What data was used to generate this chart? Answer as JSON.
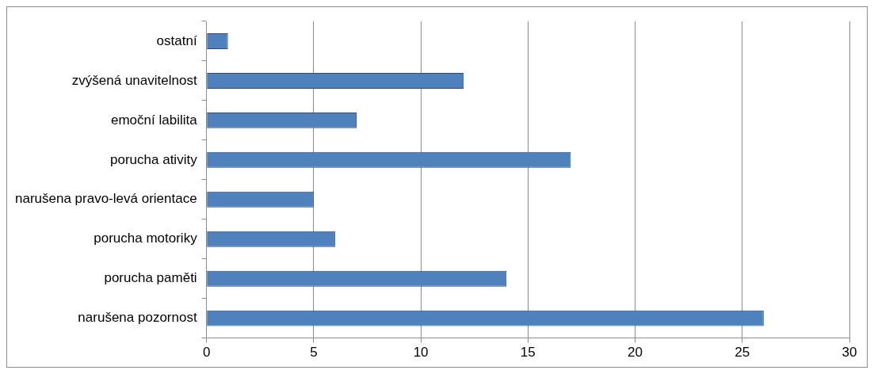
{
  "chart_data": {
    "type": "bar",
    "orientation": "horizontal",
    "categories": [
      "ostatní",
      "zvýšená unavitelnost",
      "emoční labilita",
      "porucha ativity",
      "narušena pravo-levá orientace",
      "porucha motoriky",
      "porucha paměti",
      "narušena pozornost"
    ],
    "values": [
      1,
      12,
      7,
      17,
      5,
      6,
      14,
      26
    ],
    "color": "#4f81bd",
    "xlim": [
      0,
      30
    ],
    "xticks": [
      0,
      5,
      10,
      15,
      20,
      25,
      30
    ],
    "grid": "x",
    "legend": false
  }
}
